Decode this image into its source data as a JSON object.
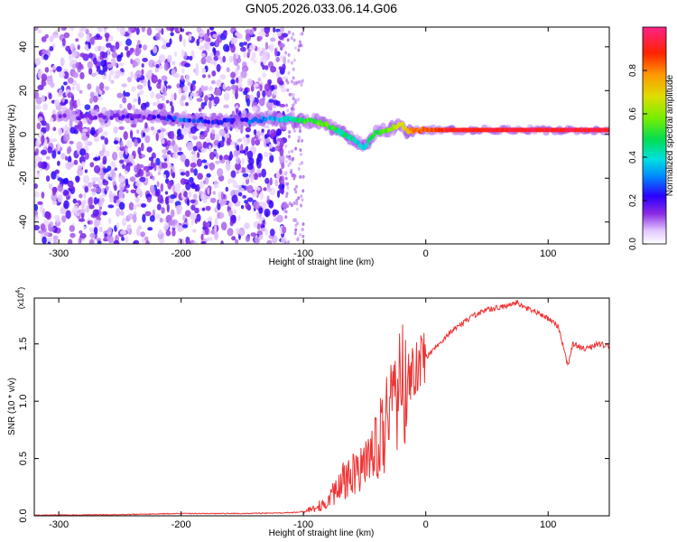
{
  "title": "GN05.2026.033.06.14.G06",
  "chart_data": [
    {
      "type": "heatmap",
      "title": "GN05.2026.033.06.14.G06",
      "xlabel": "Height of straight line (km)",
      "ylabel": "Frequency (Hz)",
      "xlim": [
        -320,
        150
      ],
      "ylim": [
        -50,
        49
      ],
      "xticks": [
        -300,
        -200,
        -100,
        0,
        100
      ],
      "yticks": [
        -40,
        -20,
        0,
        20,
        40
      ],
      "colorbar": {
        "label": "Normalized spectral amplitude",
        "range": [
          0.0,
          1.0
        ],
        "ticks": [
          0.0,
          0.2,
          0.4,
          0.6,
          0.8
        ],
        "tick_labels": [
          "0.0",
          "0.2",
          "0.4",
          "0.6",
          "0.8"
        ]
      },
      "noise_region_x": [
        -320,
        -115
      ],
      "sparse_noise_x": [
        -115,
        -100
      ],
      "signal_track": {
        "x": [
          -225,
          -200,
          -175,
          -150,
          -125,
          -110,
          -100,
          -90,
          -80,
          -70,
          -60,
          -55,
          -50,
          -45,
          -40,
          -30,
          -20,
          -15,
          -10,
          0,
          20,
          60,
          110,
          150
        ],
        "y": [
          8,
          7,
          6,
          6,
          7,
          7,
          6,
          6,
          4,
          1,
          -2,
          -4,
          -6,
          -2,
          1,
          2,
          5,
          1,
          2,
          2,
          2,
          2,
          2,
          2
        ],
        "amplitude": [
          0.2,
          0.35,
          0.25,
          0.3,
          0.4,
          0.45,
          0.55,
          0.6,
          0.6,
          0.5,
          0.5,
          0.45,
          0.4,
          0.5,
          0.55,
          0.65,
          0.7,
          0.8,
          0.85,
          0.9,
          0.95,
          0.97,
          0.98,
          0.98
        ]
      }
    },
    {
      "type": "line",
      "xlabel": "Height of straight line (km)",
      "ylabel": "SNR (10 * v/v)",
      "multiplier_label": "(x10",
      "multiplier_exp": "4",
      "multiplier_close": ")",
      "xlim": [
        -320,
        150
      ],
      "ylim": [
        0.0,
        1.9
      ],
      "xticks": [
        -300,
        -200,
        -100,
        0,
        100
      ],
      "yticks": [
        0.0,
        0.5,
        1.0,
        1.5
      ],
      "ytick_labels": [
        "0.0",
        "0.5",
        "1.0",
        "1.5"
      ],
      "color": "#ee3333",
      "series": [
        {
          "name": "SNR",
          "x": [
            -320,
            -250,
            -200,
            -150,
            -120,
            -105,
            -95,
            -85,
            -75,
            -68,
            -62,
            -55,
            -48,
            -40,
            -33,
            -27,
            -22,
            -15,
            -8,
            0,
            10,
            20,
            30,
            40,
            50,
            60,
            70,
            75,
            80,
            90,
            100,
            108,
            113,
            116,
            120,
            130,
            140,
            150
          ],
          "y": [
            0.005,
            0.01,
            0.02,
            0.02,
            0.025,
            0.03,
            0.05,
            0.1,
            0.2,
            0.3,
            0.35,
            0.4,
            0.45,
            0.6,
            0.8,
            1.0,
            1.1,
            1.2,
            1.3,
            1.38,
            1.5,
            1.6,
            1.68,
            1.75,
            1.8,
            1.82,
            1.85,
            1.86,
            1.82,
            1.78,
            1.72,
            1.65,
            1.45,
            1.3,
            1.5,
            1.45,
            1.5,
            1.48
          ]
        }
      ]
    }
  ]
}
